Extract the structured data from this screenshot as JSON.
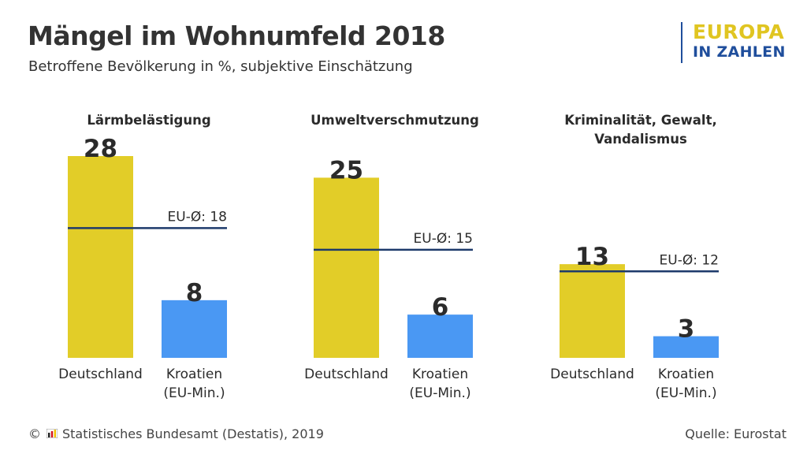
{
  "header": {
    "title": "Mängel im Wohnumfeld 2018",
    "subtitle": "Betroffene Bevölkerung in %, subjektive Einschätzung"
  },
  "brand": {
    "line1": "EUROPA",
    "line2": "IN ZAHLEN",
    "color_line1": "#e0c521",
    "color_line2": "#1f4e9c"
  },
  "chart_data": [
    {
      "type": "bar",
      "title": [
        "Lärmbelästigung"
      ],
      "categories": [
        [
          "Deutschland"
        ],
        [
          "Kroatien",
          "(EU-Min.)"
        ]
      ],
      "values": [
        28,
        8
      ],
      "colors": [
        "#e2cd28",
        "#4a98f3"
      ],
      "reference": {
        "label": "EU-Ø: 18",
        "value": 18,
        "color": "#1d3a6b"
      },
      "ylim": [
        0,
        30
      ],
      "grid": false
    },
    {
      "type": "bar",
      "title": [
        "Umweltverschmutzung"
      ],
      "categories": [
        [
          "Deutschland"
        ],
        [
          "Kroatien",
          "(EU-Min.)"
        ]
      ],
      "values": [
        25,
        6
      ],
      "colors": [
        "#e2cd28",
        "#4a98f3"
      ],
      "reference": {
        "label": "EU-Ø: 15",
        "value": 15,
        "color": "#1d3a6b"
      },
      "ylim": [
        0,
        30
      ],
      "grid": false
    },
    {
      "type": "bar",
      "title": [
        "Kriminalität, Gewalt,",
        "Vandalismus"
      ],
      "categories": [
        [
          "Deutschland"
        ],
        [
          "Kroatien",
          "(EU-Min.)"
        ]
      ],
      "values": [
        13,
        3
      ],
      "colors": [
        "#e2cd28",
        "#4a98f3"
      ],
      "reference": {
        "label": "EU-Ø: 12",
        "value": 12,
        "color": "#1d3a6b"
      },
      "ylim": [
        0,
        30
      ],
      "grid": false
    }
  ],
  "footer": {
    "copyright": "©",
    "source_org": "Statistisches Bundesamt (Destatis), 2019",
    "source": "Quelle: Eurostat",
    "logo_icon": "destatis-logo-icon"
  }
}
